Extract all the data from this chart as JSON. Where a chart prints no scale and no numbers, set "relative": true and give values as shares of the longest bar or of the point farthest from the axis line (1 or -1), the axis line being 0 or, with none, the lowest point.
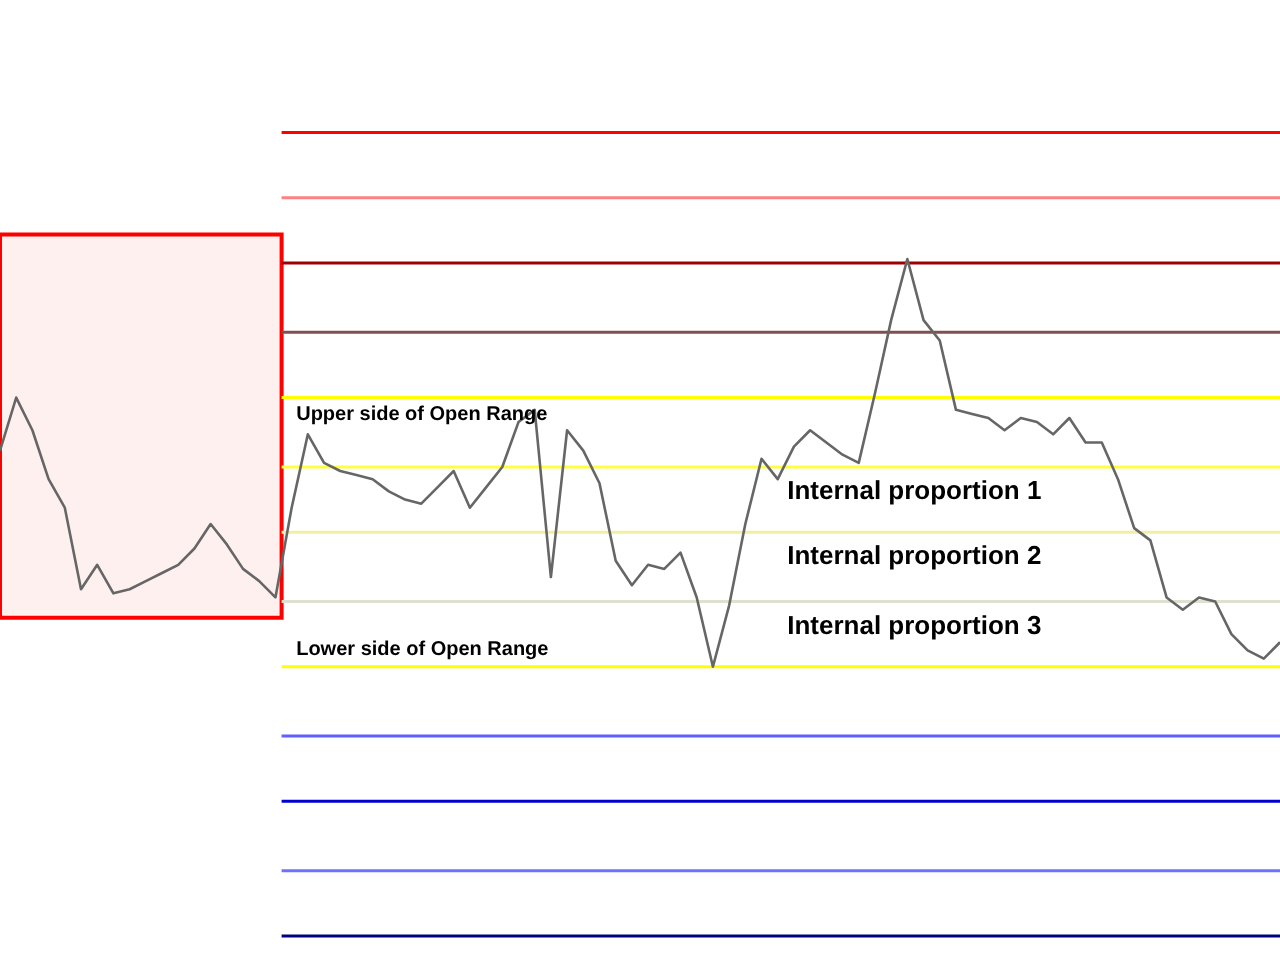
{
  "chart_data": {
    "type": "line",
    "relative": true,
    "categories": [
      null,
      null,
      null,
      null,
      null,
      null,
      null,
      null,
      null,
      null,
      null,
      null,
      null,
      null,
      null,
      null,
      null,
      null,
      null,
      null,
      null,
      null,
      null,
      null,
      null,
      null,
      null,
      null,
      null,
      null,
      null,
      null,
      null,
      null,
      null,
      null,
      null,
      null,
      null,
      null,
      null,
      null,
      null,
      null,
      null,
      null,
      null,
      null,
      null,
      null,
      null,
      null,
      null,
      null,
      null,
      null,
      null,
      null,
      null,
      null,
      null,
      null,
      null,
      null,
      null,
      null,
      null,
      null,
      null,
      null,
      null,
      null,
      null,
      null,
      null,
      null,
      null,
      null,
      null,
      null
    ],
    "series": [
      {
        "color": "#666666",
        "values": [
          0.53,
          0.66,
          0.58,
          0.46,
          0.39,
          0.19,
          0.25,
          0.18,
          0.19,
          0.21,
          0.23,
          0.25,
          0.29,
          0.35,
          0.3,
          0.24,
          0.21,
          0.17,
          0.39,
          0.57,
          0.5,
          0.48,
          0.47,
          0.46,
          0.43,
          0.41,
          0.4,
          0.44,
          0.48,
          0.39,
          0.44,
          0.49,
          0.6,
          0.63,
          0.22,
          0.58,
          0.53,
          0.45,
          0.26,
          0.2,
          0.25,
          0.24,
          0.28,
          0.17,
          0.0,
          0.15,
          0.35,
          0.51,
          0.46,
          0.54,
          0.58,
          0.55,
          0.52,
          0.5,
          0.67,
          0.85,
          1.0,
          0.85,
          0.8,
          0.63,
          0.62,
          0.61,
          0.58,
          0.61,
          0.6,
          0.57,
          0.61,
          0.55,
          0.55,
          0.46,
          0.34,
          0.31,
          0.17,
          0.14,
          0.17,
          0.16,
          0.08,
          0.04,
          0.02,
          0.06
        ]
      }
    ],
    "ref_lines": [
      {
        "axis": "y",
        "value": 1.31,
        "color": "#ff0000"
      },
      {
        "axis": "y",
        "value": 1.15,
        "color": "#ff8080"
      },
      {
        "axis": "y",
        "value": 0.99,
        "color": "#a00000"
      },
      {
        "axis": "y",
        "value": 0.82,
        "color": "#805050"
      },
      {
        "axis": "y",
        "value": 0.66,
        "color": "#ffff00",
        "label": "Upper side of Open Range"
      },
      {
        "axis": "y",
        "value": 0.49,
        "color": "#ffff40",
        "label": "Internal proportion 1"
      },
      {
        "axis": "y",
        "value": 0.33,
        "color": "#f0f0a0",
        "label": "Internal proportion 2"
      },
      {
        "axis": "y",
        "value": 0.16,
        "color": "#e0e0d0",
        "label": "Internal proportion 3"
      },
      {
        "axis": "y",
        "value": 0.0,
        "color": "#ffff00",
        "label": "Lower side of Open Range"
      },
      {
        "axis": "y",
        "value": -0.17,
        "color": "#6060ff"
      },
      {
        "axis": "y",
        "value": -0.33,
        "color": "#0000d0"
      },
      {
        "axis": "y",
        "value": -0.5,
        "color": "#7070ff"
      },
      {
        "axis": "y",
        "value": -0.66,
        "color": "#000080"
      }
    ],
    "bands": [
      {
        "axis": "y",
        "from": 0.12,
        "to": 1.06,
        "color": "#ff0000"
      }
    ]
  }
}
